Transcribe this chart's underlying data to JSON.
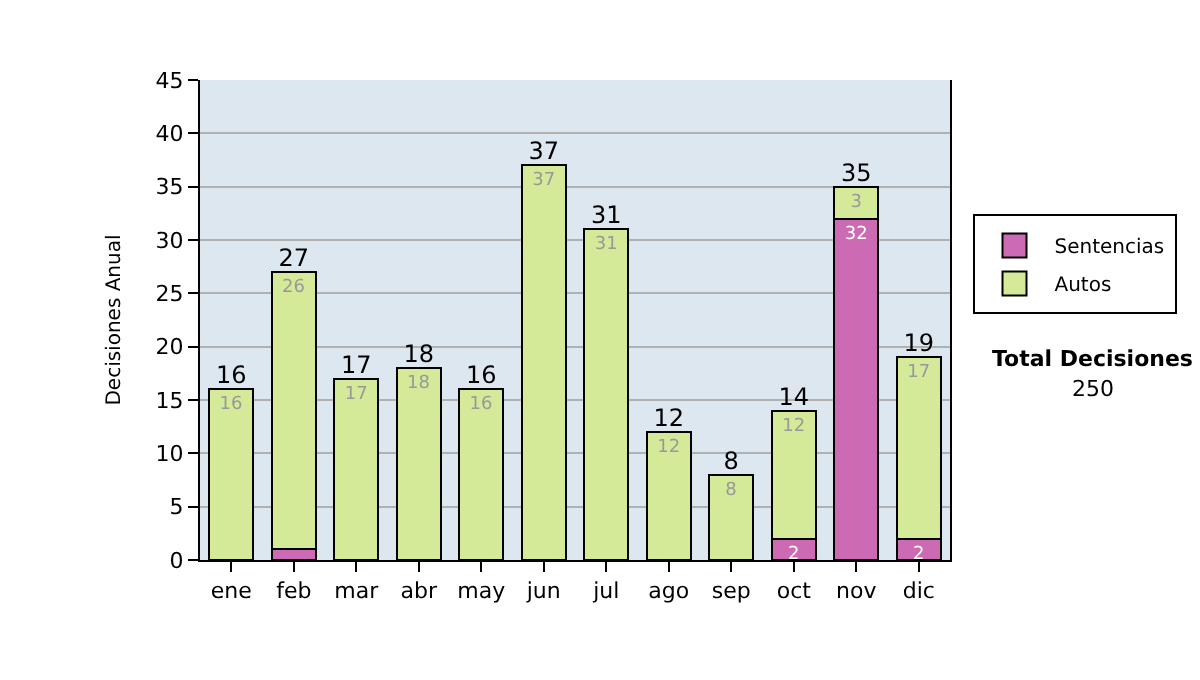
{
  "chart_data": {
    "type": "bar",
    "stacked": true,
    "ylabel": "Decisiones Anual",
    "categories": [
      "ene",
      "feb",
      "mar",
      "abr",
      "may",
      "jun",
      "jul",
      "ago",
      "sep",
      "oct",
      "nov",
      "dic"
    ],
    "series": [
      {
        "name": "Sentencias",
        "color": "#cc6ab4",
        "values": [
          null,
          1,
          null,
          null,
          null,
          null,
          null,
          null,
          null,
          2,
          32,
          2
        ],
        "value_labels": [
          null,
          null,
          null,
          null,
          null,
          null,
          null,
          null,
          null,
          "2",
          "32",
          "2"
        ]
      },
      {
        "name": "Autos",
        "color": "#d5ea98",
        "values": [
          16,
          26,
          17,
          18,
          16,
          37,
          31,
          12,
          8,
          12,
          3,
          17
        ],
        "value_labels": [
          "16",
          "26",
          "17",
          "18",
          "16",
          "37",
          "31",
          "12",
          "8",
          "12",
          "3",
          "17"
        ]
      }
    ],
    "totals": [
      "16",
      "27",
      "17",
      "18",
      "16",
      "37",
      "31",
      "12",
      "8",
      "14",
      "35",
      "19"
    ],
    "ylim": [
      0,
      45
    ],
    "yticks": [
      0,
      5,
      10,
      15,
      20,
      25,
      30,
      35,
      40,
      45
    ],
    "grid": "y",
    "legend": "right",
    "annotations": [
      "Total Decisiones",
      "250"
    ]
  }
}
